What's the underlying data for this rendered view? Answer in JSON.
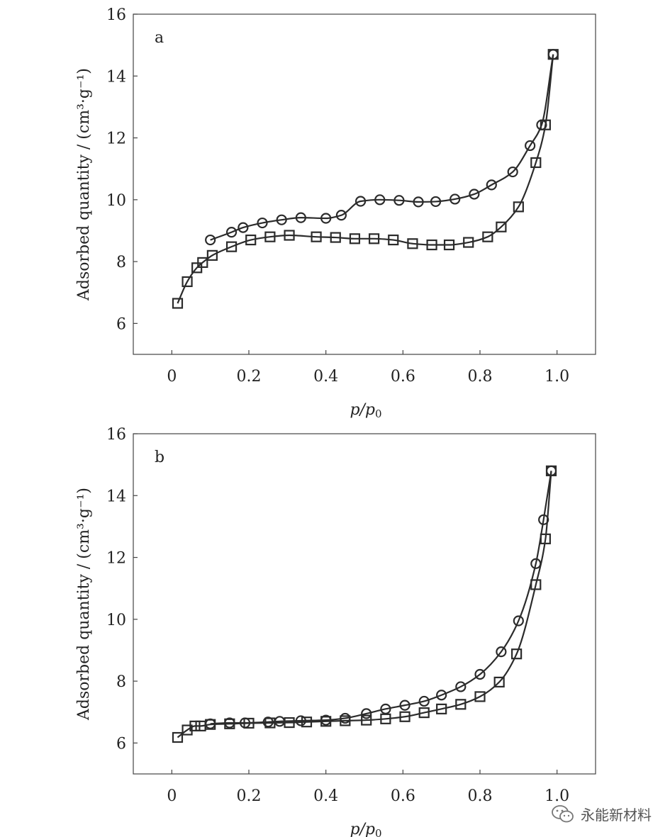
{
  "chart_data": [
    {
      "type": "line",
      "panel_label": "a",
      "xlabel_main": "p",
      "xlabel_sub": "0",
      "ylabel": "Adsorbed quantity / (cm³·g⁻¹)",
      "xlim": [
        -0.1,
        1.1
      ],
      "ylim": [
        5,
        16
      ],
      "x_ticks": [
        0,
        0.2,
        0.4,
        0.6,
        0.8,
        1.0
      ],
      "x_tick_labels": [
        "0",
        "0.2",
        "0.4",
        "0.6",
        "0.8",
        "1.0"
      ],
      "y_ticks": [
        6,
        8,
        10,
        12,
        14,
        16
      ],
      "y_tick_labels": [
        "6",
        "8",
        "10",
        "12",
        "14",
        "16"
      ],
      "grid": false,
      "series": [
        {
          "marker": "circle",
          "x": [
            0.1,
            0.155,
            0.185,
            0.235,
            0.285,
            0.335,
            0.4,
            0.44,
            0.49,
            0.54,
            0.59,
            0.64,
            0.685,
            0.735,
            0.785,
            0.83,
            0.885,
            0.93,
            0.96,
            0.99
          ],
          "y": [
            8.7,
            8.95,
            9.1,
            9.25,
            9.35,
            9.42,
            9.4,
            9.5,
            9.95,
            10.0,
            9.98,
            9.93,
            9.94,
            10.02,
            10.18,
            10.48,
            10.9,
            11.75,
            12.42,
            14.7
          ]
        },
        {
          "marker": "square",
          "x": [
            0.015,
            0.04,
            0.065,
            0.08,
            0.105,
            0.155,
            0.205,
            0.255,
            0.305,
            0.375,
            0.425,
            0.475,
            0.525,
            0.575,
            0.625,
            0.675,
            0.72,
            0.77,
            0.82,
            0.855,
            0.9,
            0.945,
            0.97,
            0.99
          ],
          "y": [
            6.65,
            7.35,
            7.8,
            7.97,
            8.2,
            8.48,
            8.7,
            8.8,
            8.85,
            8.8,
            8.78,
            8.74,
            8.74,
            8.7,
            8.58,
            8.54,
            8.54,
            8.62,
            8.8,
            9.12,
            9.77,
            11.2,
            12.42,
            14.7
          ]
        }
      ]
    },
    {
      "type": "line",
      "panel_label": "b",
      "xlabel_main": "p",
      "xlabel_sub": "0",
      "ylabel": "Adsorbed quantity / (cm³·g⁻¹)",
      "xlim": [
        -0.1,
        1.1
      ],
      "ylim": [
        5,
        16
      ],
      "x_ticks": [
        0,
        0.2,
        0.4,
        0.6,
        0.8,
        1.0
      ],
      "x_tick_labels": [
        "0",
        "0.2",
        "0.4",
        "0.6",
        "0.8",
        "1.0"
      ],
      "y_ticks": [
        6,
        8,
        10,
        12,
        14,
        16
      ],
      "y_tick_labels": [
        "6",
        "8",
        "10",
        "12",
        "14",
        "16"
      ],
      "grid": false,
      "series": [
        {
          "marker": "circle",
          "x": [
            0.1,
            0.15,
            0.19,
            0.25,
            0.28,
            0.335,
            0.4,
            0.45,
            0.505,
            0.555,
            0.605,
            0.655,
            0.7,
            0.75,
            0.8,
            0.855,
            0.9,
            0.945,
            0.965,
            0.985
          ],
          "y": [
            6.62,
            6.65,
            6.65,
            6.68,
            6.7,
            6.72,
            6.74,
            6.8,
            6.95,
            7.1,
            7.22,
            7.35,
            7.55,
            7.82,
            8.22,
            8.95,
            9.95,
            11.8,
            13.22,
            14.8
          ]
        },
        {
          "marker": "square",
          "x": [
            0.015,
            0.04,
            0.06,
            0.075,
            0.1,
            0.15,
            0.2,
            0.255,
            0.305,
            0.35,
            0.4,
            0.45,
            0.505,
            0.555,
            0.605,
            0.655,
            0.7,
            0.75,
            0.8,
            0.85,
            0.895,
            0.945,
            0.97,
            0.985
          ],
          "y": [
            6.18,
            6.42,
            6.55,
            6.55,
            6.6,
            6.62,
            6.64,
            6.65,
            6.66,
            6.68,
            6.7,
            6.72,
            6.74,
            6.78,
            6.85,
            6.98,
            7.1,
            7.25,
            7.5,
            7.97,
            8.88,
            11.12,
            12.6,
            14.8
          ]
        }
      ]
    }
  ],
  "watermark": {
    "text": "永能新材料",
    "icon": "wechat-icon"
  }
}
